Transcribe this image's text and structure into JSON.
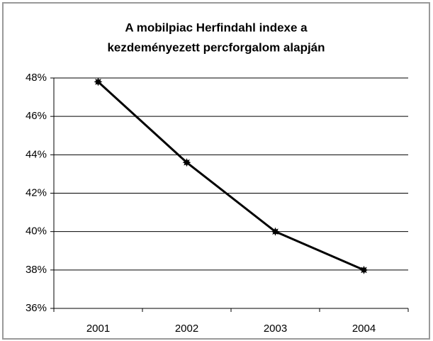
{
  "chart_data": {
    "type": "line",
    "title": [
      "A mobilpiac Herfindahl indexe a",
      "kezdeményezett percforgalom alapján"
    ],
    "categories": [
      "2001",
      "2002",
      "2003",
      "2004"
    ],
    "series": [
      {
        "name": "Herfindahl index",
        "color": "#000000",
        "values": [
          47.8,
          43.6,
          40.0,
          38.0
        ]
      }
    ],
    "ylim": [
      36,
      48
    ],
    "yticks": [
      {
        "value": 36,
        "label": "36%"
      },
      {
        "value": 38,
        "label": "38%"
      },
      {
        "value": 40,
        "label": "40%"
      },
      {
        "value": 42,
        "label": "42%"
      },
      {
        "value": 44,
        "label": "44%"
      },
      {
        "value": 46,
        "label": "46%"
      },
      {
        "value": 48,
        "label": "48%"
      }
    ],
    "grid": true
  }
}
